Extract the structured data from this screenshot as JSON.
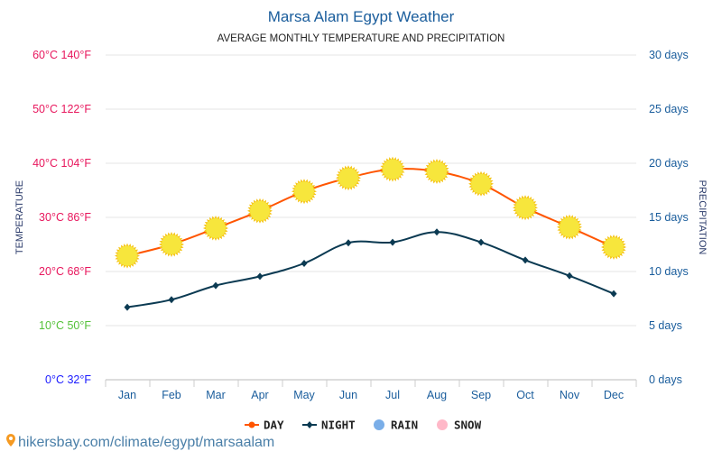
{
  "chart_data": {
    "type": "line",
    "title": "Marsa Alam Egypt Weather",
    "subtitle": "AVERAGE MONTHLY TEMPERATURE AND PRECIPITATION",
    "ylabel": "TEMPERATURE",
    "y2label": "PRECIPITATION",
    "categories": [
      "Jan",
      "Feb",
      "Mar",
      "Apr",
      "May",
      "Jun",
      "Jul",
      "Aug",
      "Sep",
      "Oct",
      "Nov",
      "Dec"
    ],
    "ylim": [
      0,
      60
    ],
    "y2lim": [
      0,
      30
    ],
    "yticks": [
      {
        "label": "0°C 32°F",
        "color": "#1a1aff"
      },
      {
        "label": "10°C 50°F",
        "color": "#55c23a"
      },
      {
        "label": "20°C 68°F",
        "color": "#e8175d"
      },
      {
        "label": "30°C 86°F",
        "color": "#e8175d"
      },
      {
        "label": "40°C 104°F",
        "color": "#e8175d"
      },
      {
        "label": "50°C 122°F",
        "color": "#e8175d"
      },
      {
        "label": "60°C 140°F",
        "color": "#e8175d"
      }
    ],
    "y2ticks": [
      "0 days",
      "5 days",
      "10 days",
      "15 days",
      "20 days",
      "25 days",
      "30 days"
    ],
    "grid": true,
    "legend_placement": "bottom",
    "series": [
      {
        "name": "DAY",
        "color": "#ff5500",
        "marker": "sun-icon",
        "values": [
          22.9,
          25.0,
          28.0,
          31.2,
          34.8,
          37.3,
          38.9,
          38.5,
          36.2,
          31.8,
          28.2,
          24.5
        ]
      },
      {
        "name": "NIGHT",
        "color": "#0b3a52",
        "marker": "diamond",
        "values": [
          13.4,
          14.8,
          17.4,
          19.1,
          21.5,
          25.3,
          25.4,
          27.3,
          25.4,
          22.1,
          19.2,
          15.9
        ]
      }
    ],
    "legend": [
      {
        "name": "DAY",
        "color": "#ff5500"
      },
      {
        "name": "NIGHT",
        "color": "#0b3a52"
      },
      {
        "name": "RAIN",
        "color": "#7aaee8"
      },
      {
        "name": "SNOW",
        "color": "#ffb8c8"
      }
    ]
  },
  "footer": {
    "url": "hikersbay.com/climate/egypt/marsaalam"
  }
}
